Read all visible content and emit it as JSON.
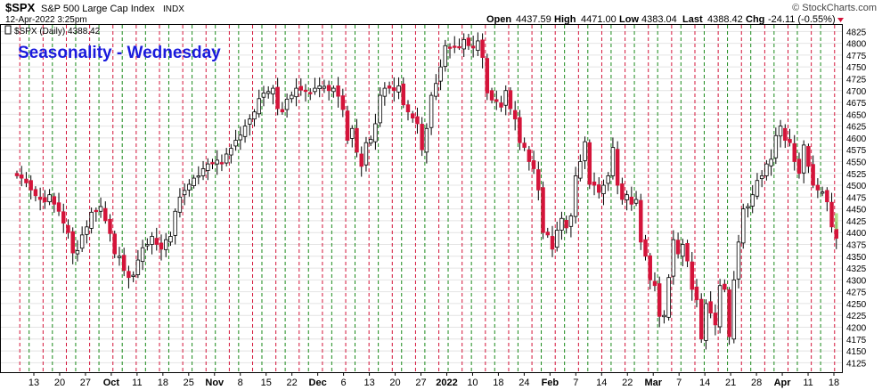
{
  "header": {
    "symbol": "$SPX",
    "name": "S&P 500 Large Cap Index",
    "exchange": "INDX",
    "date": "12-Apr-2022 3:25pm",
    "watermark": "© StockCharts.com",
    "ohlc_labels": {
      "open": "Open",
      "high": "High",
      "low": "Low",
      "last": "Last",
      "chg": "Chg"
    },
    "open": "4437.59",
    "high": "4471.00",
    "low": "4383.04",
    "last": "4388.42",
    "chg": "-24.11 (-0.55%)"
  },
  "legend": {
    "series_label": "$SPX (Daily) 4388.42"
  },
  "annotation": {
    "text": "Seasonality - Wednesday",
    "color": "#1a1adc"
  },
  "colors": {
    "down": "#d4143a",
    "up_fill": "#ffffff",
    "wick": "#000000",
    "green_line": "#1a8a1a",
    "red_line": "#d4143a",
    "last_bar": "#9bd46a",
    "grid": "#e4e4e4"
  },
  "chart_data": {
    "type": "candlestick",
    "title": "Seasonality - Wednesday",
    "ylim": [
      4105,
      4835
    ],
    "y_ticks": [
      4125,
      4150,
      4175,
      4200,
      4225,
      4250,
      4275,
      4300,
      4325,
      4350,
      4375,
      4400,
      4425,
      4450,
      4475,
      4500,
      4525,
      4550,
      4575,
      4600,
      4625,
      4650,
      4675,
      4700,
      4725,
      4750,
      4775,
      4800,
      4825
    ],
    "x_tick_labels": [
      "13",
      "20",
      "27",
      "Oct",
      "11",
      "18",
      "25",
      "Nov",
      "8",
      "15",
      "22",
      "Dec",
      "6",
      "13",
      "20",
      "27",
      "2022",
      "10",
      "18",
      "24",
      "Feb",
      "7",
      "14",
      "22",
      "Mar",
      "7",
      "14",
      "21",
      "28",
      "Apr",
      "11",
      "18"
    ],
    "x_tick_bold": [
      "Oct",
      "Nov",
      "Dec",
      "2022",
      "Feb",
      "Mar",
      "Apr"
    ],
    "date_range": [
      "2021-09-07",
      "2022-04-12"
    ],
    "candles_ohlc_close_approx": [
      4520,
      4515,
      4505,
      4490,
      4478,
      4470,
      4465,
      4480,
      4460,
      4445,
      4420,
      4400,
      4357,
      4362,
      4395,
      4412,
      4443,
      4445,
      4455,
      4425,
      4398,
      4355,
      4350,
      4320,
      4305,
      4310,
      4342,
      4368,
      4375,
      4392,
      4375,
      4365,
      4385,
      4392,
      4445,
      4475,
      4489,
      4502,
      4515,
      4520,
      4535,
      4545,
      4546,
      4553,
      4545,
      4566,
      4578,
      4595,
      4606,
      4625,
      4640,
      4655,
      4683,
      4695,
      4698,
      4705,
      4662,
      4655,
      4682,
      4690,
      4705,
      4701,
      4700,
      4695,
      4705,
      4710,
      4709,
      4700,
      4705,
      4688,
      4660,
      4595,
      4620,
      4570,
      4540,
      4590,
      4597,
      4630,
      4690,
      4705,
      4705,
      4700,
      4710,
      4670,
      4655,
      4642,
      4630,
      4575,
      4620,
      4690,
      4715,
      4750,
      4795,
      4790,
      4793,
      4792,
      4808,
      4795,
      4790,
      4805,
      4770,
      4695,
      4680,
      4677,
      4665,
      4700,
      4662,
      4640,
      4590,
      4580,
      4550,
      4535,
      4490,
      4400,
      4395,
      4365,
      4405,
      4430,
      4410,
      4435,
      4520,
      4550,
      4592,
      4502,
      4500,
      4485,
      4500,
      4520,
      4580,
      4500,
      4470,
      4480,
      4460,
      4470,
      4380,
      4350,
      4300,
      4288,
      4223,
      4225,
      4305,
      4385,
      4355,
      4375,
      4340,
      4280,
      4258,
      4175,
      4250,
      4230,
      4205,
      4288,
      4280,
      4180,
      4300,
      4380,
      4450,
      4455,
      4480,
      4510,
      4520,
      4545,
      4555,
      4605,
      4625,
      4595,
      4590,
      4550,
      4525,
      4585,
      4540,
      4500,
      4490,
      4486,
      4465,
      4412,
      4388
    ],
    "green_line_labels": "Wednesdays (dashed green)",
    "red_line_labels": "alternating weeks (dashed red)"
  }
}
